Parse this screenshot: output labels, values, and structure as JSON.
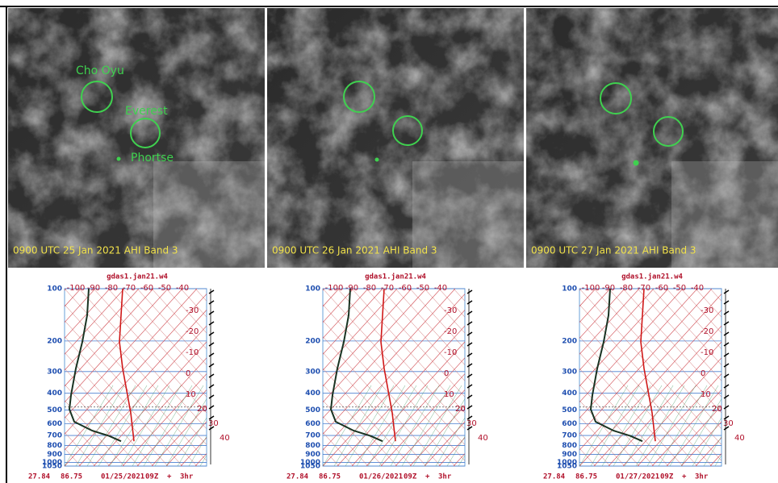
{
  "panels": [
    {
      "caption": "0900 UTC 25 Jan 2021 AHI Band 3",
      "labels": [
        "Cho Oyu",
        "Everest",
        "Phortse"
      ]
    },
    {
      "caption": "0900 UTC 26 Jan 2021 AHI Band 3"
    },
    {
      "caption": "0900 UTC 27 Jan 2021 AHI Band 3"
    }
  ],
  "soundings": [
    {
      "title": "gdas1.jan21.w4",
      "footer": [
        "27.84",
        "86.75",
        "01/25/2021",
        "09Z",
        "+",
        "3hr"
      ]
    },
    {
      "title": "gdas1.jan21.w4",
      "footer": [
        "27.84",
        "86.75",
        "01/26/2021",
        "09Z",
        "+",
        "3hr"
      ]
    },
    {
      "title": "gdas1.jan21.w4",
      "footer": [
        "27.84",
        "86.75",
        "01/27/2021",
        "09Z",
        "+",
        "3hr"
      ]
    }
  ],
  "pressure_labels": [
    "100",
    "200",
    "300",
    "400",
    "500",
    "600",
    "700",
    "800",
    "900",
    "1000",
    "1050"
  ],
  "top_temp_labels": [
    "-100",
    "-90",
    "-80",
    "-70",
    "-60",
    "-50",
    "-40"
  ],
  "right_temp_labels": [
    "-30",
    "-20",
    "-10",
    "0",
    "10",
    "20",
    "30",
    "40"
  ]
}
